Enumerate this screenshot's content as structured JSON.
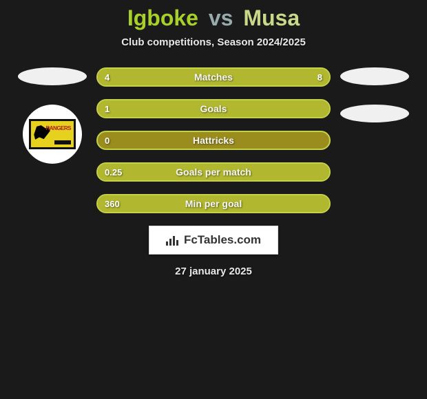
{
  "background_color": "#1a1a1a",
  "title": {
    "player1": "Igboke",
    "vs": "vs",
    "player2": "Musa",
    "player1_color": "#a7d129",
    "vs_color": "#99aaaa",
    "player2_color": "#c9d98a",
    "fontsize": 32
  },
  "subtitle": "Club competitions, Season 2024/2025",
  "left_side": {
    "player_ellipse": true,
    "club_badge": {
      "bg": "#e6d21e",
      "label": "RANGERS",
      "label_color": "#b01818"
    }
  },
  "right_side": {
    "player_ellipse": true,
    "club_ellipse": true
  },
  "stats": {
    "type": "comparison-bars",
    "bar_bg": "#9a8d1e",
    "bar_fill": "#b1b82f",
    "bar_border": "#c4d24a",
    "text_color": "#ffffff",
    "fontsize": 14,
    "rows": [
      {
        "label": "Matches",
        "left": "4",
        "right": "8",
        "left_pct": 33,
        "right_pct": 67
      },
      {
        "label": "Goals",
        "left": "1",
        "right": "",
        "left_pct": 100,
        "right_pct": 0
      },
      {
        "label": "Hattricks",
        "left": "0",
        "right": "",
        "left_pct": 0,
        "right_pct": 0
      },
      {
        "label": "Goals per match",
        "left": "0.25",
        "right": "",
        "left_pct": 100,
        "right_pct": 0
      },
      {
        "label": "Min per goal",
        "left": "360",
        "right": "",
        "left_pct": 100,
        "right_pct": 0
      }
    ]
  },
  "brand": "FcTables.com",
  "date": "27 january 2025"
}
